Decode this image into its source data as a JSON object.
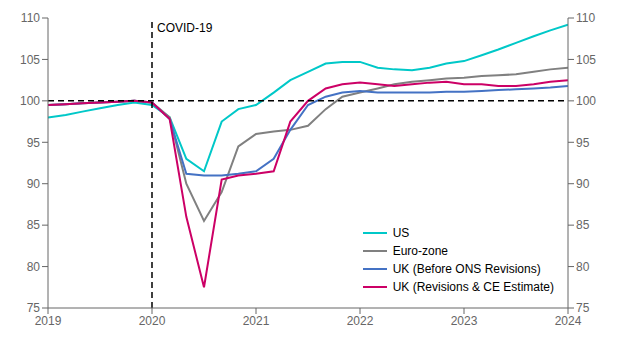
{
  "chart_data": {
    "type": "line",
    "x": [
      2019.0,
      2019.17,
      2019.33,
      2019.5,
      2019.67,
      2019.83,
      2020.0,
      2020.17,
      2020.33,
      2020.5,
      2020.67,
      2020.83,
      2021.0,
      2021.17,
      2021.33,
      2021.5,
      2021.67,
      2021.83,
      2022.0,
      2022.17,
      2022.33,
      2022.5,
      2022.67,
      2022.83,
      2023.0,
      2023.17,
      2023.33,
      2023.5,
      2023.67,
      2023.83,
      2024.0
    ],
    "series": [
      {
        "name": "US",
        "color": "#00c8c8",
        "values": [
          98.0,
          98.3,
          98.7,
          99.1,
          99.5,
          99.8,
          99.5,
          98.0,
          93.0,
          91.5,
          97.5,
          99.0,
          99.5,
          101.0,
          102.5,
          103.5,
          104.5,
          104.7,
          104.7,
          104.0,
          103.8,
          103.7,
          104.0,
          104.5,
          104.8,
          105.5,
          106.2,
          107.0,
          107.8,
          108.5,
          109.2
        ]
      },
      {
        "name": "Euro-zone",
        "color": "#808080",
        "values": [
          99.5,
          99.6,
          99.7,
          99.8,
          99.9,
          100.0,
          99.8,
          98.0,
          90.0,
          85.5,
          89.0,
          94.5,
          96.0,
          96.3,
          96.5,
          97.0,
          99.0,
          100.5,
          101.0,
          101.5,
          102.0,
          102.3,
          102.5,
          102.7,
          102.8,
          103.0,
          103.1,
          103.2,
          103.5,
          103.8,
          104.0
        ]
      },
      {
        "name": "UK (Before ONS Revisions)",
        "color": "#4472c4",
        "values": [
          99.5,
          99.6,
          99.7,
          99.8,
          99.9,
          100.0,
          99.8,
          97.8,
          91.2,
          91.0,
          91.0,
          91.2,
          91.5,
          93.0,
          96.5,
          99.5,
          100.5,
          101.0,
          101.2,
          101.0,
          101.0,
          101.0,
          101.0,
          101.1,
          101.1,
          101.2,
          101.3,
          101.4,
          101.5,
          101.6,
          101.8
        ]
      },
      {
        "name": "UK (Revisions & CE Estimate)",
        "color": "#cc0066",
        "values": [
          99.5,
          99.6,
          99.7,
          99.8,
          99.9,
          100.0,
          99.8,
          97.8,
          86.0,
          77.5,
          90.5,
          91.0,
          91.2,
          91.5,
          97.5,
          100.0,
          101.5,
          102.0,
          102.2,
          102.0,
          101.8,
          102.0,
          102.2,
          102.3,
          102.0,
          102.0,
          101.8,
          101.8,
          102.0,
          102.3,
          102.5
        ]
      }
    ],
    "xlim": [
      2019.0,
      2024.0
    ],
    "xticks": [
      2019,
      2020,
      2021,
      2022,
      2023,
      2024
    ],
    "ylim": [
      75,
      110
    ],
    "yticks": [
      75,
      80,
      85,
      90,
      95,
      100,
      105,
      110
    ],
    "y2lim": [
      75,
      110
    ],
    "y2ticks": [
      75,
      80,
      85,
      90,
      95,
      100,
      105,
      110
    ],
    "annotations": [
      {
        "type": "hline",
        "y": 100
      },
      {
        "type": "vline",
        "x": 2020.0,
        "text": "COVID-19"
      }
    ],
    "grid": false,
    "legend": "lower right"
  }
}
